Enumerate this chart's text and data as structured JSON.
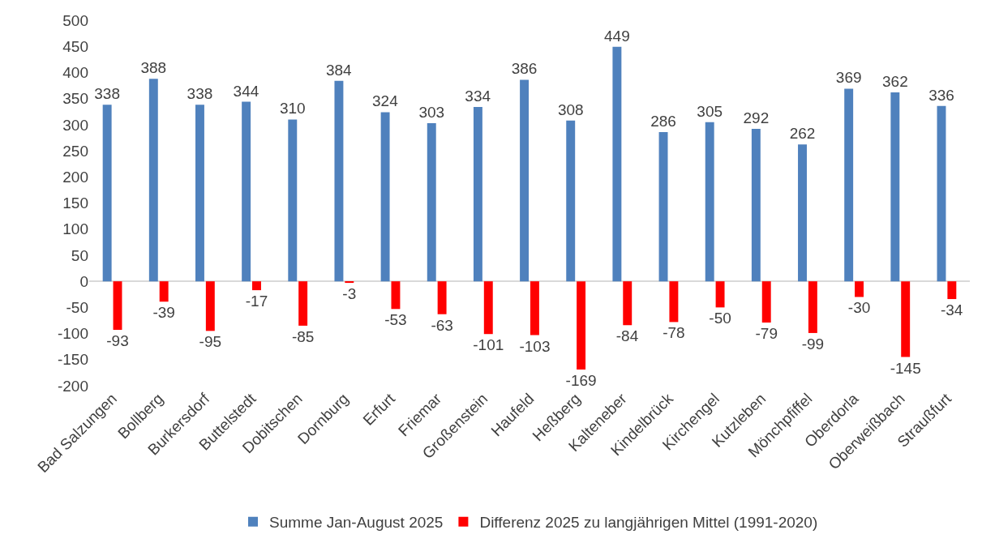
{
  "chart_data": {
    "type": "bar",
    "categories": [
      "Bad Salzungen",
      "Bollberg",
      "Burkersdorf",
      "Buttelstedt",
      "Dobitschen",
      "Dornburg",
      "Erfurt",
      "Friemar",
      "Großenstein",
      "Haufeld",
      "Heßberg",
      "Kalteneber",
      "Kindelbrück",
      "Kirchengel",
      "Kutzleben",
      "Mönchpfiffel",
      "Oberdorla",
      "Oberweißbach",
      "Straußfurt"
    ],
    "series": [
      {
        "name": "Summe Jan-August 2025",
        "color": "#4f81bd",
        "values": [
          338,
          388,
          338,
          344,
          310,
          384,
          324,
          303,
          334,
          386,
          308,
          449,
          286,
          305,
          292,
          262,
          369,
          362,
          336
        ]
      },
      {
        "name": "Differenz 2025 zu langjährigen Mittel (1991-2020)",
        "color": "#ff0000",
        "values": [
          -93,
          -39,
          -95,
          -17,
          -85,
          -3,
          -53,
          -63,
          -101,
          -103,
          -169,
          -84,
          -78,
          -50,
          -79,
          -99,
          -30,
          -145,
          -34
        ]
      }
    ],
    "ylim": [
      -200,
      500
    ],
    "yticks": [
      -200,
      -150,
      -100,
      -50,
      0,
      50,
      100,
      150,
      200,
      250,
      300,
      350,
      400,
      450,
      500
    ],
    "data_labels": true,
    "legend": "bottom"
  }
}
